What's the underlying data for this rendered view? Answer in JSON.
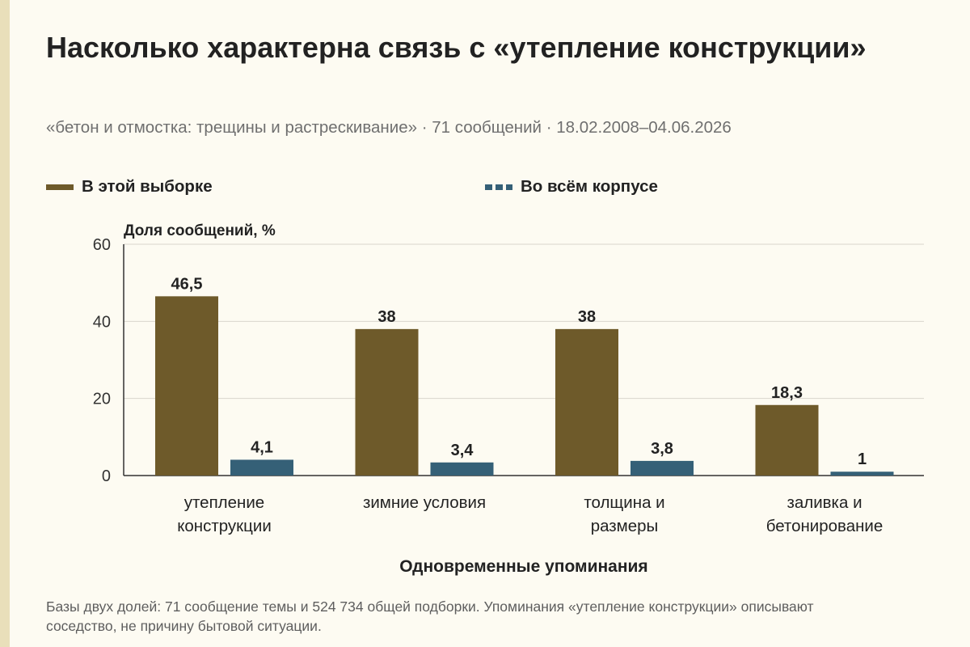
{
  "title": "Насколько характерна связь с «утепление конструкции»",
  "subtitle": "«бетон и отмостка: трещины и растрескивание» · 71 сообщений · 18.02.2008–04.06.2026",
  "footnote": "Базы двух долей: 71 сообщение темы и 524 734 общей подборки. Упоминания «утепление конструкции» описывают соседство, не причину бытовой ситуации.",
  "colors": {
    "sample": "#6e5a2a",
    "corpus": "#356077",
    "grid": "#d9d6cc",
    "axis": "#333333"
  },
  "chart_data": {
    "type": "bar",
    "categories": [
      [
        "утепление",
        "конструкции"
      ],
      [
        "зимние условия"
      ],
      [
        "толщина и",
        "размеры"
      ],
      [
        "заливка и",
        "бетонирование"
      ]
    ],
    "series": [
      {
        "name": "В этой выборке",
        "values": [
          46.5,
          38,
          38,
          18.3
        ],
        "labels": [
          "46,5",
          "38",
          "38",
          "18,3"
        ],
        "style": "solid"
      },
      {
        "name": "Во всём корпусе",
        "values": [
          4.1,
          3.4,
          3.8,
          1
        ],
        "labels": [
          "4,1",
          "3,4",
          "3,8",
          "1"
        ],
        "style": "dashed"
      }
    ],
    "xlabel": "Одновременные упоминания",
    "ylabel": "Доля сообщений, %",
    "ylim": [
      0,
      60
    ],
    "yticks": [
      0,
      20,
      40,
      60
    ],
    "grid": true,
    "legend": "top-left"
  }
}
